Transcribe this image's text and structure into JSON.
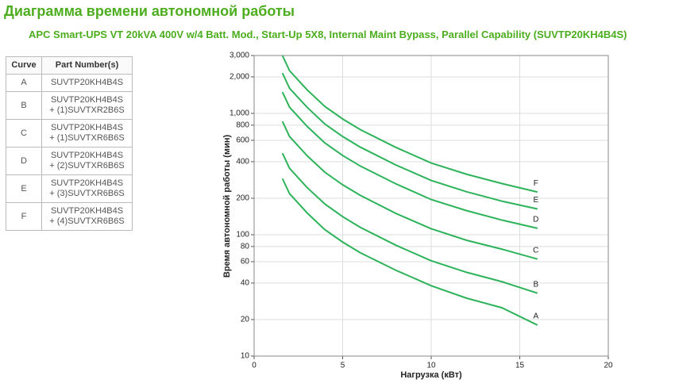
{
  "header": {
    "title": "Диаграмма времени автономной работы",
    "subtitle": "APC Smart-UPS VT 20kVA 400V w/4 Batt. Mod., Start-Up 5X8, Internal Maint Bypass, Parallel Capability (SUVTP20KH4B4S)"
  },
  "table": {
    "columns": [
      "Curve",
      "Part Number(s)"
    ],
    "rows": [
      [
        "A",
        "SUVTP20KH4B4S"
      ],
      [
        "B",
        "SUVTP20KH4B4S\n+ (1)SUVTXR2B6S"
      ],
      [
        "C",
        "SUVTP20KH4B4S\n+ (1)SUVTXR6B6S"
      ],
      [
        "D",
        "SUVTP20KH4B4S\n+ (2)SUVTXR6B6S"
      ],
      [
        "E",
        "SUVTP20KH4B4S\n+ (3)SUVTXR6B6S"
      ],
      [
        "F",
        "SUVTP20KH4B4S\n+ (4)SUVTXR6B6S"
      ]
    ]
  },
  "chart_data": {
    "type": "line",
    "x_label": "Нагрузка (кВт)",
    "y_label": "Время автономной работы (мин)",
    "x": [
      1.6,
      2,
      3,
      4,
      5,
      6,
      8,
      10,
      12,
      14,
      16
    ],
    "series": [
      {
        "name": "A",
        "color": "#2db35a",
        "values": [
          290,
          218,
          151,
          110,
          87,
          71,
          51,
          38,
          30,
          25,
          18
        ]
      },
      {
        "name": "B",
        "color": "#2db35a",
        "values": [
          470,
          353,
          244,
          179,
          141,
          115,
          82,
          61,
          49,
          41,
          33
        ]
      },
      {
        "name": "C",
        "color": "#2db35a",
        "values": [
          860,
          645,
          447,
          327,
          258,
          211,
          150,
          112,
          90,
          76,
          63
        ]
      },
      {
        "name": "D",
        "color": "#2db35a",
        "values": [
          1500,
          1125,
          780,
          570,
          450,
          368,
          263,
          195,
          158,
          132,
          113
        ]
      },
      {
        "name": "E",
        "color": "#2db35a",
        "values": [
          2150,
          1610,
          1120,
          817,
          645,
          527,
          376,
          280,
          226,
          189,
          163
        ]
      },
      {
        "name": "F",
        "color": "#2db35a",
        "values": [
          3000,
          2250,
          1560,
          1140,
          900,
          735,
          525,
          390,
          315,
          264,
          225
        ]
      }
    ],
    "xlim": [
      0,
      20
    ],
    "xticks": [
      0,
      5,
      10,
      15,
      20
    ],
    "ylim": [
      10,
      3000
    ],
    "y_scale": "log",
    "yticks": [
      10,
      20,
      40,
      60,
      80,
      100,
      200,
      400,
      600,
      800,
      {
        "value": 1000,
        "label": "1,000"
      },
      {
        "value": 2000,
        "label": "2,000"
      },
      {
        "value": 3000,
        "label": "3,000"
      }
    ],
    "grid": true
  }
}
